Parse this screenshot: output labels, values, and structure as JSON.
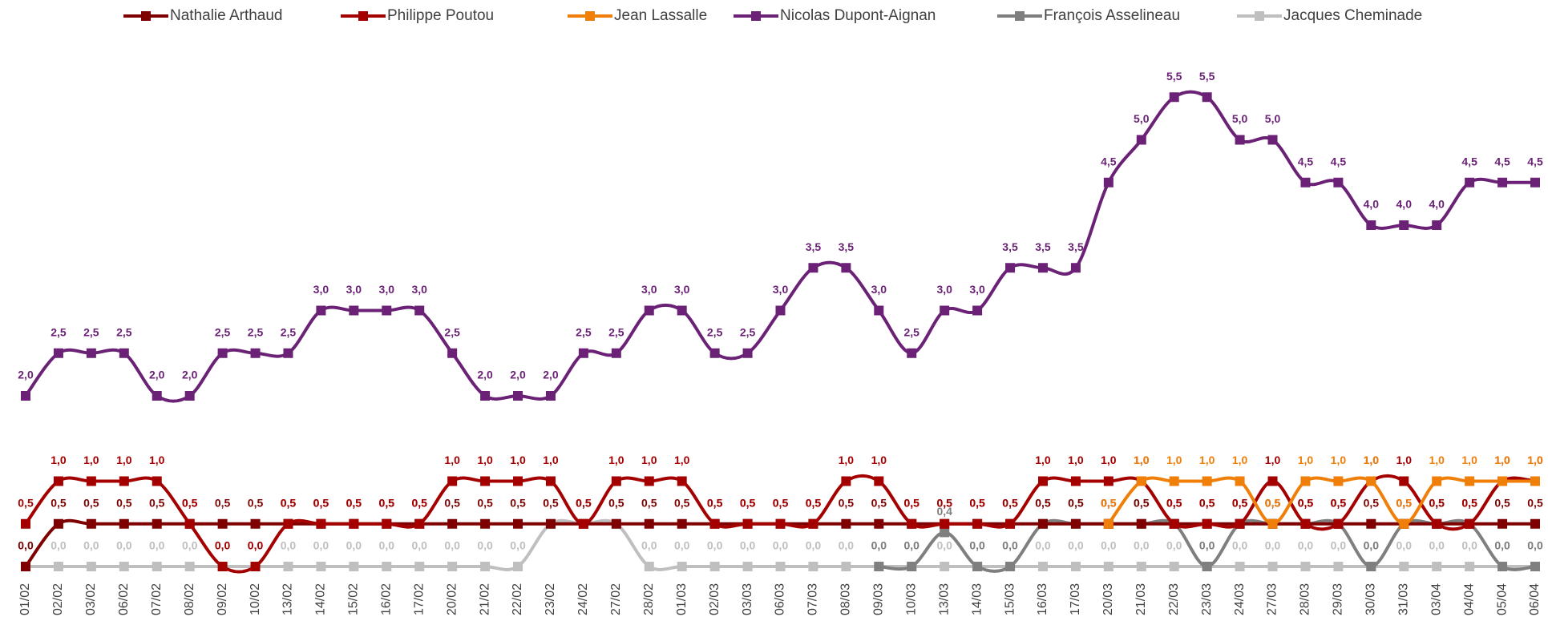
{
  "chart_data": {
    "type": "line",
    "categories": [
      "01/02",
      "02/02",
      "03/02",
      "06/02",
      "07/02",
      "08/02",
      "09/02",
      "10/02",
      "13/02",
      "14/02",
      "15/02",
      "16/02",
      "17/02",
      "20/02",
      "21/02",
      "22/02",
      "23/02",
      "24/02",
      "27/02",
      "28/02",
      "01/03",
      "02/03",
      "03/03",
      "06/03",
      "07/03",
      "08/03",
      "09/03",
      "10/03",
      "13/03",
      "14/03",
      "15/03",
      "16/03",
      "17/03",
      "20/03",
      "21/03",
      "22/03",
      "23/03",
      "24/03",
      "27/03",
      "28/03",
      "29/03",
      "30/03",
      "31/03",
      "03/04",
      "04/04",
      "05/04",
      "06/04"
    ],
    "ylim": [
      0,
      6
    ],
    "series": [
      {
        "name": "Nathalie Arthaud",
        "color": "#7f0000",
        "values": [
          0,
          0.5,
          0.5,
          0.5,
          0.5,
          0.5,
          0.5,
          0.5,
          0.5,
          0.5,
          0.5,
          0.5,
          0.5,
          0.5,
          0.5,
          0.5,
          0.5,
          0.5,
          0.5,
          0.5,
          0.5,
          0.5,
          0.5,
          0.5,
          0.5,
          0.5,
          0.5,
          0.5,
          0.5,
          0.5,
          0.5,
          0.5,
          0.5,
          0.5,
          0.5,
          0.5,
          0.5,
          0.5,
          0.5,
          0.5,
          0.5,
          0.5,
          0.5,
          0.5,
          0.5,
          0.5,
          0.5
        ],
        "value_labels": [
          "0,0",
          "0,5",
          "0,5",
          "0,5",
          "0,5",
          "0,5",
          "0,5",
          "0,5",
          "0,5",
          "0,5",
          "0,5",
          "0,5",
          "0,5",
          "0,5",
          "0,5",
          "0,5",
          "0,5",
          "0,5",
          "0,5",
          "0,5",
          "0,5",
          "0,5",
          "0,5",
          "0,5",
          "0,5",
          "0,5",
          "0,5",
          "0,5",
          "0,5",
          "0,5",
          "0,5",
          "0,5",
          "0,5",
          "0,5",
          "0,5",
          "0,5",
          "0,5",
          "0,5",
          "0,5",
          "0,5",
          "0,5",
          "0,5",
          "0,5",
          "0,5",
          "0,5",
          "0,5",
          "0,5"
        ]
      },
      {
        "name": "Philippe Poutou",
        "color": "#a50000",
        "values": [
          0.5,
          1,
          1,
          1,
          1,
          0.5,
          0,
          0,
          0.5,
          0.5,
          0.5,
          0.5,
          0.5,
          1,
          1,
          1,
          1,
          0.5,
          1,
          1,
          1,
          0.5,
          0.5,
          0.5,
          0.5,
          1,
          1,
          0.5,
          0.5,
          0.5,
          0.5,
          1,
          1,
          1,
          1,
          0.5,
          0.5,
          0.5,
          1,
          0.5,
          0.5,
          1,
          1,
          0.5,
          0.5,
          1,
          1
        ],
        "value_labels": [
          "0,5",
          "1,0",
          "1,0",
          "1,0",
          "1,0",
          "0,5",
          "0,0",
          "0,0",
          "0,5",
          "0,5",
          "0,5",
          "0,5",
          "0,5",
          "1,0",
          "1,0",
          "1,0",
          "1,0",
          "0,5",
          "1,0",
          "1,0",
          "1,0",
          "0,5",
          "0,5",
          "0,5",
          "0,5",
          "1,0",
          "1,0",
          "0,5",
          "0,5",
          "0,5",
          "0,5",
          "1,0",
          "1,0",
          "1,0",
          "1,0",
          "0,5",
          "0,5",
          "0,5",
          "1,0",
          "0,5",
          "0,5",
          "1,0",
          "1,0",
          "0,5",
          "0,5",
          "1,0",
          "1,0"
        ]
      },
      {
        "name": "Jean Lassalle",
        "color": "#f07f09",
        "values": [
          null,
          null,
          null,
          null,
          null,
          null,
          null,
          null,
          null,
          null,
          null,
          null,
          null,
          null,
          null,
          null,
          null,
          null,
          null,
          null,
          null,
          null,
          null,
          null,
          null,
          null,
          null,
          null,
          null,
          null,
          null,
          null,
          null,
          0.5,
          1,
          1,
          1,
          1,
          0.5,
          1,
          1,
          1,
          0.5,
          1,
          1,
          1,
          1
        ],
        "value_labels": [
          null,
          null,
          null,
          null,
          null,
          null,
          null,
          null,
          null,
          null,
          null,
          null,
          null,
          null,
          null,
          null,
          null,
          null,
          null,
          null,
          null,
          null,
          null,
          null,
          null,
          null,
          null,
          null,
          null,
          null,
          null,
          null,
          null,
          "0,5",
          "1,0",
          "1,0",
          "1,0",
          "1,0",
          "0,5",
          "1,0",
          "1,0",
          "1,0",
          "0,5",
          "1,0",
          "1,0",
          "1,0",
          "1,0"
        ]
      },
      {
        "name": "Nicolas Dupont-Aignan",
        "color": "#6a2176",
        "values": [
          2,
          2.5,
          2.5,
          2.5,
          2,
          2,
          2.5,
          2.5,
          2.5,
          3,
          3,
          3,
          3,
          2.5,
          2,
          2,
          2,
          2.5,
          2.5,
          3,
          3,
          2.5,
          2.5,
          3,
          3.5,
          3.5,
          3,
          2.5,
          3,
          3,
          3.5,
          3.5,
          3.5,
          4.5,
          5,
          5.5,
          5.5,
          5,
          5,
          4.5,
          4.5,
          4,
          4,
          4,
          4.5,
          4.5,
          4.5
        ],
        "value_labels": [
          "2,0",
          "2,5",
          "2,5",
          "2,5",
          "2,0",
          "2,0",
          "2,5",
          "2,5",
          "2,5",
          "3,0",
          "3,0",
          "3,0",
          "3,0",
          "2,5",
          "2,0",
          "2,0",
          "2,0",
          "2,5",
          "2,5",
          "3,0",
          "3,0",
          "2,5",
          "2,5",
          "3,0",
          "3,5",
          "3,5",
          "3,0",
          "2,5",
          "3,0",
          "3,0",
          "3,5",
          "3,5",
          "3,5",
          "4,5",
          "5,0",
          "5,5",
          "5,5",
          "5,0",
          "5,0",
          "4,5",
          "4,5",
          "4,0",
          "4,0",
          "4,0",
          "4,5",
          "4,5",
          "4,5"
        ]
      },
      {
        "name": "François Asselineau",
        "color": "#7f7f7f",
        "values": [
          null,
          null,
          null,
          null,
          null,
          null,
          null,
          null,
          null,
          null,
          null,
          null,
          null,
          null,
          null,
          null,
          null,
          null,
          null,
          null,
          null,
          null,
          null,
          null,
          null,
          null,
          0,
          0,
          0.4,
          0,
          0,
          0.5,
          0.5,
          0.5,
          0.5,
          0.5,
          0,
          0.5,
          0.5,
          0.5,
          0.5,
          0,
          0.5,
          0.5,
          0.5,
          0,
          0
        ],
        "value_labels": [
          null,
          null,
          null,
          null,
          null,
          null,
          null,
          null,
          null,
          null,
          null,
          null,
          null,
          null,
          null,
          null,
          null,
          null,
          null,
          null,
          null,
          null,
          null,
          null,
          null,
          null,
          "0,0",
          "0,0",
          "0,4",
          "0,0",
          "0,0",
          "0,5",
          "0,5",
          "0,5",
          "0,5",
          "0,5",
          "0,0",
          "0,5",
          "0,5",
          "0,5",
          "0,5",
          "0,0",
          "0,5",
          "0,5",
          "0,5",
          "0,0",
          "0,0"
        ]
      },
      {
        "name": "Jacques Cheminade",
        "color": "#bfbfbf",
        "values": [
          0,
          0,
          0,
          0,
          0,
          0,
          0,
          0,
          0,
          0,
          0,
          0,
          0,
          0,
          0,
          0,
          0.5,
          0.5,
          0.5,
          0,
          0,
          0,
          0,
          0,
          0,
          0,
          0,
          0,
          0,
          0,
          0,
          0,
          0,
          0,
          0,
          0,
          0,
          0,
          0,
          0,
          0,
          0,
          0,
          0,
          0,
          0,
          0
        ],
        "value_labels": [
          "0,0",
          "0,0",
          "0,0",
          "0,0",
          "0,0",
          "0,0",
          "0,0",
          "0,0",
          "0,0",
          "0,0",
          "0,0",
          "0,0",
          "0,0",
          "0,0",
          "0,0",
          "0,0",
          "0,5",
          "0,5",
          "0,5",
          "0,0",
          "0,0",
          "0,0",
          "0,0",
          "0,0",
          "0,0",
          "0,0",
          "0,0",
          "0,0",
          "0,0",
          "0,0",
          "0,0",
          "0,0",
          "0,0",
          "0,0",
          "0,0",
          "0,0",
          "0,0",
          "0,0",
          "0,0",
          "0,0",
          "0,0",
          "0,0",
          "0,0",
          "0,0",
          "0,0",
          "0,0",
          "0,0"
        ]
      }
    ],
    "legend": "top"
  }
}
